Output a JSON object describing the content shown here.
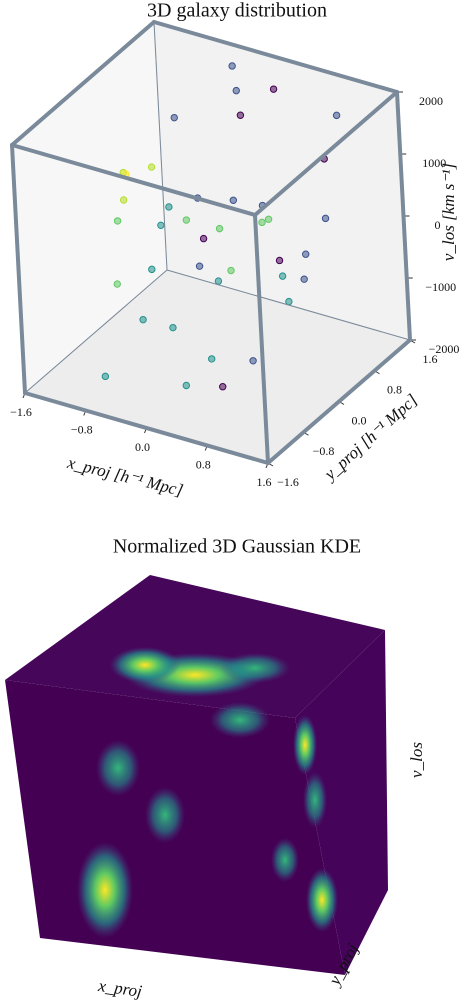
{
  "chart_data": [
    {
      "type": "scatter3d",
      "title": "3D galaxy distribution",
      "xlabel": "x_proj [h⁻¹ Mpc]",
      "ylabel": "y_proj [h⁻¹ Mpc]",
      "zlabel": "v_los [km s⁻¹]",
      "xlim": [
        -1.6,
        1.6
      ],
      "ylim": [
        -1.6,
        1.6
      ],
      "zlim": [
        -2000,
        2000
      ],
      "xticks": [
        {
          "value": -1.6,
          "label": "−1.6"
        },
        {
          "value": -0.8,
          "label": "−0.8"
        },
        {
          "value": 0,
          "label": "0.0"
        },
        0.8,
        1.6
      ],
      "yticks": [
        {
          "value": -1.6,
          "label": "−1.6"
        },
        {
          "value": -0.8,
          "label": "−0.8"
        },
        {
          "value": 0,
          "label": "0.0"
        },
        0.8,
        1.6
      ],
      "zticks": [
        {
          "value": -2000,
          "label": "−2000"
        },
        {
          "value": -1000,
          "label": "−1000"
        },
        0,
        1000,
        2000
      ],
      "edge_color": "#7a8a9a",
      "series": [
        {
          "x": [
            -0.9,
            -0.5,
            0.2,
            0.6,
            1.1,
            -1.2,
            -0.3,
            0.4,
            0.9,
            -0.7,
            0.0,
            0.7,
            -1.0,
            -0.2,
            0.3,
            1.3,
            -0.6,
            0.5,
            -1.4,
            0.1,
            0.8,
            -0.4,
            1.0,
            -0.8,
            0.6,
            -0.1,
            1.2,
            -1.1,
            0.3,
            -0.5,
            0.9,
            -0.9,
            0.2,
            1.4,
            -0.3,
            0.5,
            -1.3,
            0.0,
            0.7,
            -0.6
          ],
          "y": [
            0.8,
            -0.5,
            1.2,
            0.3,
            -1.0,
            0.1,
            0.6,
            -0.8,
            1.4,
            -1.3,
            0.2,
            0.9,
            -0.2,
            1.1,
            -0.6,
            0.4,
            -1.1,
            0.7,
            0.5,
            -0.4,
            -1.2,
            1.3,
            0.0,
            -0.7,
            1.0,
            -0.9,
            0.6,
            1.5,
            -1.4,
            0.3,
            -0.3,
            -0.1,
            0.8,
            -0.8,
            1.2,
            -1.5,
            0.9,
            0.4,
            -0.6,
            0.1
          ],
          "z": [
            1200,
            -300,
            1800,
            400,
            -900,
            200,
            -1100,
            700,
            1500,
            -1600,
            100,
            -500,
            900,
            1300,
            -1400,
            600,
            -200,
            -800,
            300,
            1000,
            -1300,
            1900,
            -600,
            500,
            -1000,
            800,
            1400,
            -1700,
            -400,
            0,
            1100,
            -1500,
            -100,
            700,
            1600,
            -1200,
            200,
            -700,
            1300,
            300
          ],
          "colors": [
            "#3b528b",
            "#21918c",
            "#440154",
            "#5ec962",
            "#3b528b",
            "#b5de2b",
            "#21918c",
            "#440154",
            "#3b528b",
            "#21918c",
            "#5ec962",
            "#3b528b",
            "#b5de2b",
            "#440154",
            "#21918c",
            "#3b528b",
            "#5ec962",
            "#21918c",
            "#fde725",
            "#3b528b",
            "#440154",
            "#3b528b",
            "#21918c",
            "#5ec962",
            "#3b528b",
            "#21918c",
            "#440154",
            "#3b528b",
            "#21918c",
            "#5ec962",
            "#3b528b",
            "#21918c",
            "#5ec962",
            "#440154",
            "#3b528b",
            "#21918c",
            "#b5de2b",
            "#5ec962",
            "#3b528b",
            "#21918c"
          ]
        }
      ]
    },
    {
      "type": "volume",
      "title": "Normalized 3D Gaussian KDE",
      "xlabel": "x_proj",
      "ylabel": "y_proj",
      "zlabel": "v_los"
    }
  ]
}
